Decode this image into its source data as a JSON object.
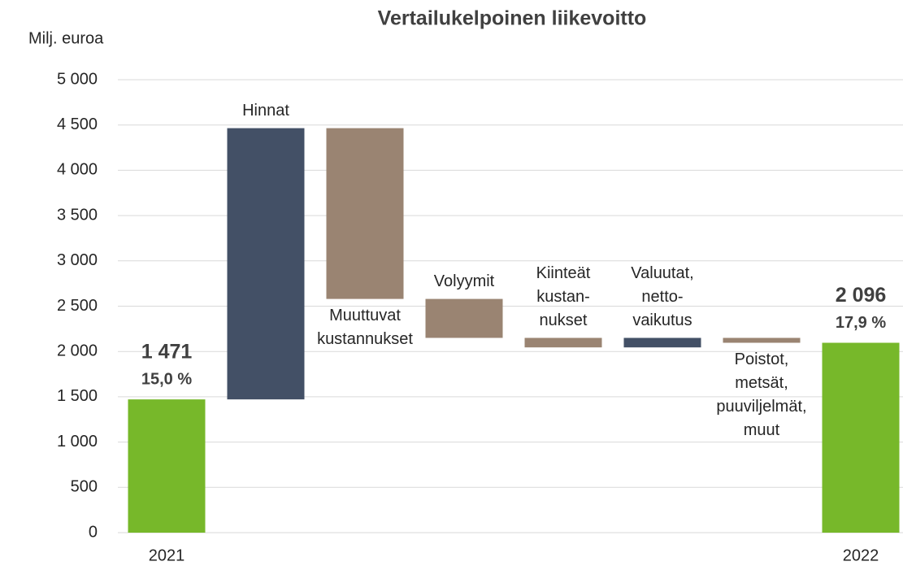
{
  "chart_data": {
    "type": "waterfall",
    "title": "Vertailukelpoinen liikevoitto",
    "y_label": "Milj. euroa",
    "ylim": [
      0,
      5000
    ],
    "yticks": [
      0,
      500,
      {
        "value": 1000,
        "label": "1 000"
      },
      {
        "value": 1500,
        "label": "1 500"
      },
      {
        "value": 2000,
        "label": "2 000"
      },
      {
        "value": 2500,
        "label": "2 500"
      },
      {
        "value": 3000,
        "label": "3 000"
      },
      {
        "value": 3500,
        "label": "3 500"
      },
      {
        "value": 4000,
        "label": "4 000"
      },
      {
        "value": 4500,
        "label": "4 500"
      },
      {
        "value": 5000,
        "label": "5 000"
      }
    ],
    "grid": true,
    "start": {
      "category": "2021",
      "value": 1471,
      "value_label": "1 471",
      "margin": "15,0 %",
      "color": "#77b82a"
    },
    "steps": [
      {
        "label": [
          "Hinnat"
        ],
        "value": 2994,
        "color": "#435066",
        "label_position": "above"
      },
      {
        "label": [
          "Muuttuvat",
          "kustannukset"
        ],
        "value": -1885,
        "color": "#9a8472",
        "label_position": "below"
      },
      {
        "label": [
          "Volyymit"
        ],
        "value": -430,
        "color": "#9a8472",
        "label_position": "above"
      },
      {
        "label": [
          "Kiinteät",
          "kustan-",
          "nukset"
        ],
        "value": -105,
        "color": "#9a8472",
        "label_position": "above"
      },
      {
        "label": [
          "Valuutat,",
          "netto-",
          "vaikutus"
        ],
        "value": 105,
        "color": "#435066",
        "label_position": "above"
      },
      {
        "label": [
          "Poistot,",
          "metsät,",
          "puuviljelmät,",
          "muut"
        ],
        "value": -54,
        "color": "#9a8472",
        "label_position": "below"
      }
    ],
    "end": {
      "category": "2022",
      "value": 2096,
      "value_label": "2 096",
      "margin": "17,9 %",
      "color": "#77b82a"
    }
  }
}
